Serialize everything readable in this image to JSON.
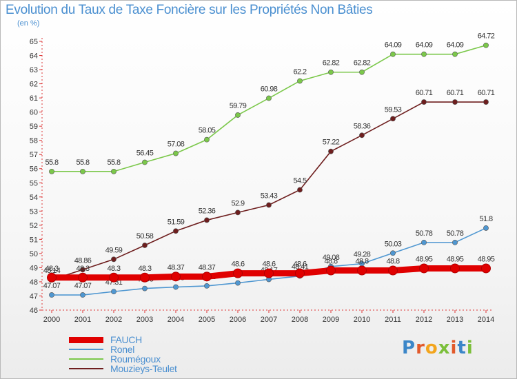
{
  "header": {
    "title": "Evolution du Taux de Taxe Foncière sur les Propriétés Non Bâties",
    "unit": "(en %)"
  },
  "brand": {
    "letters": [
      "P",
      "r",
      "o",
      "x",
      "i",
      "t",
      "i"
    ],
    "colors": [
      "#3b86c8",
      "#e25a2b",
      "#f3a51d",
      "#7bbf3a",
      "#e25a2b",
      "#3b86c8",
      "#7bbf3a"
    ]
  },
  "chart_data": {
    "type": "line",
    "x": [
      2000,
      2001,
      2002,
      2003,
      2004,
      2005,
      2006,
      2007,
      2008,
      2009,
      2010,
      2011,
      2012,
      2013,
      2014
    ],
    "ylim": [
      46,
      65
    ],
    "yticks": [
      46,
      47,
      48,
      49,
      50,
      51,
      52,
      53,
      54,
      55,
      56,
      57,
      58,
      59,
      60,
      61,
      62,
      63,
      64,
      65
    ],
    "grid": false,
    "legend": "bottom-left",
    "series": [
      {
        "name": "FAUCH",
        "color": "#e00000",
        "values": [
          48.3,
          48.3,
          48.3,
          48.3,
          48.37,
          48.37,
          48.6,
          48.6,
          48.6,
          48.8,
          48.8,
          48.8,
          48.95,
          48.95,
          48.95
        ],
        "labels": [
          "48.3",
          "48.3",
          "48.3",
          "48.3",
          "48.37",
          "48.37",
          "48.6",
          "48.6",
          "48.6",
          "48.8",
          "48.8",
          "48.8",
          "48.95",
          "48.95",
          "48.95"
        ]
      },
      {
        "name": "Ronel",
        "color": "#4f97d1",
        "values": [
          47.07,
          47.07,
          47.31,
          47.53,
          47.63,
          47.71,
          47.92,
          48.17,
          48.41,
          49.08,
          49.28,
          50.03,
          50.78,
          50.78,
          51.8
        ],
        "labels": [
          "47.07",
          "47.07",
          "47.31",
          "47.53",
          "47.63",
          "47.71",
          "47.92",
          "48.17",
          "48.41",
          "49.08",
          "49.28",
          "50.03",
          "50.78",
          "50.78",
          "51.8"
        ]
      },
      {
        "name": "Roumégoux",
        "color": "#7bc84a",
        "values": [
          55.8,
          55.8,
          55.8,
          56.45,
          57.08,
          58.05,
          59.79,
          60.98,
          62.2,
          62.82,
          62.82,
          64.09,
          64.09,
          64.09,
          64.72
        ],
        "labels": [
          "55.8",
          "55.8",
          "55.8",
          "56.45",
          "57.08",
          "58.05",
          "59.79",
          "60.98",
          "62.2",
          "62.82",
          "62.82",
          "64.09",
          "64.09",
          "64.09",
          "64.72"
        ]
      },
      {
        "name": "Mouzieys-Teulet",
        "color": "#6e1e1e",
        "values": [
          48.14,
          48.86,
          49.59,
          50.58,
          51.59,
          52.36,
          52.9,
          53.43,
          54.5,
          57.22,
          58.36,
          59.53,
          60.71,
          60.71,
          60.71
        ],
        "labels": [
          "48.14",
          "48.86",
          "49.59",
          "50.58",
          "51.59",
          "52.36",
          "52.9",
          "53.43",
          "54.5",
          "57.22",
          "58.36",
          "59.53",
          "60.71",
          "60.71",
          "60.71"
        ]
      }
    ]
  }
}
